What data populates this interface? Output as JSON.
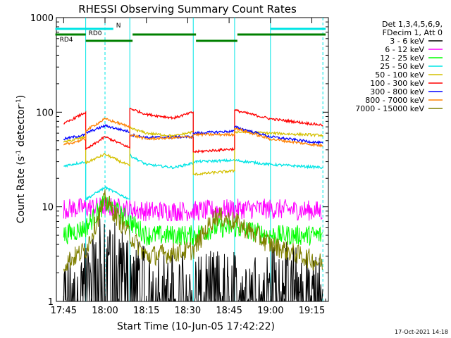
{
  "chart_data": {
    "type": "line",
    "title": "RHESSI Observing Summary Count Rates",
    "xlabel": "Start Time (10-Jun-05 17:42:22)",
    "ylabel": "Count Rate (s⁻¹ detector⁻¹)",
    "ylabel_main": "Count Rate (s",
    "ylabel_sup1": "-1",
    "ylabel_mid": " detector",
    "ylabel_sup2": "-1",
    "ylabel_end": ")",
    "yscale": "log",
    "ylim": [
      1,
      1000
    ],
    "xlim": [
      "17:42:22",
      "19:21:00"
    ],
    "x_ticks": [
      "17:45",
      "18:00",
      "18:15",
      "18:30",
      "18:45",
      "19:00",
      "19:15"
    ],
    "y_ticks": [
      "1",
      "10",
      "100",
      "1000"
    ],
    "footer_date": "17-Oct-2021 14:18",
    "legend_header": [
      "Det 1,3,4,5,6,9,",
      "FDecim 1, Att 0"
    ],
    "legend_position": "right",
    "flags": [
      {
        "label": "N",
        "color": "#00e5e5",
        "segments": [
          [
            "17:42",
            "18:03"
          ],
          [
            "19:00",
            "19:20"
          ]
        ]
      },
      {
        "label": "RD0",
        "color": "#008000",
        "segments": [
          [
            "17:42",
            "17:53"
          ],
          [
            "18:10",
            "18:33"
          ],
          [
            "18:48",
            "19:20"
          ]
        ]
      },
      {
        "label": "RD4",
        "color": "#008000",
        "segments": [
          [
            "17:53",
            "18:10"
          ],
          [
            "18:33",
            "18:48"
          ]
        ]
      }
    ],
    "vlines_solid": [
      "17:53",
      "18:09",
      "18:32",
      "18:47",
      "19:00"
    ],
    "vlines_dashed": [
      "18:00",
      "19:19"
    ],
    "series": [
      {
        "name": "3 - 6 keV",
        "color": "#000000",
        "mode": "spiky",
        "points": [
          [
            "17:45",
            1.2
          ],
          [
            "17:53",
            1.8
          ],
          [
            "18:00",
            3.5
          ],
          [
            "18:09",
            2.0
          ],
          [
            "18:15",
            1.4
          ],
          [
            "18:32",
            1.3
          ],
          [
            "18:47",
            1.3
          ],
          [
            "19:00",
            1.8
          ],
          [
            "19:19",
            1.2
          ]
        ]
      },
      {
        "name": "6 - 12 keV",
        "color": "#ff00ff",
        "mode": "noisy",
        "points": [
          [
            "17:45",
            9.5
          ],
          [
            "18:00",
            10
          ],
          [
            "18:15",
            9
          ],
          [
            "18:32",
            9
          ],
          [
            "18:47",
            9.5
          ],
          [
            "19:00",
            9.5
          ],
          [
            "19:19",
            9
          ]
        ]
      },
      {
        "name": "12 - 25 keV",
        "color": "#00ff00",
        "mode": "noisy",
        "points": [
          [
            "17:45",
            5
          ],
          [
            "17:53",
            6
          ],
          [
            "18:00",
            11
          ],
          [
            "18:09",
            7
          ],
          [
            "18:15",
            5
          ],
          [
            "18:32",
            5
          ],
          [
            "18:40",
            6
          ],
          [
            "18:47",
            6
          ],
          [
            "19:00",
            5
          ],
          [
            "19:19",
            5
          ]
        ]
      },
      {
        "name": "25 - 50 keV",
        "color": "#00e5e5",
        "mode": "smooth",
        "points": [
          [
            "17:45",
            27
          ],
          [
            "17:53",
            30
          ],
          [
            "17:53",
            12
          ],
          [
            "18:00",
            16
          ],
          [
            "18:09",
            12
          ],
          [
            "18:09",
            35
          ],
          [
            "18:15",
            28
          ],
          [
            "18:25",
            26
          ],
          [
            "18:32",
            29
          ],
          [
            "18:32",
            30
          ],
          [
            "18:47",
            31
          ],
          [
            "18:47",
            31
          ],
          [
            "19:00",
            28
          ],
          [
            "19:19",
            26
          ]
        ]
      },
      {
        "name": "50 - 100 keV",
        "color": "#d4c000",
        "mode": "smooth",
        "points": [
          [
            "17:45",
            48
          ],
          [
            "17:53",
            55
          ],
          [
            "17:53",
            29
          ],
          [
            "18:00",
            36
          ],
          [
            "18:09",
            27
          ],
          [
            "18:09",
            68
          ],
          [
            "18:15",
            60
          ],
          [
            "18:25",
            56
          ],
          [
            "18:32",
            62
          ],
          [
            "18:32",
            22
          ],
          [
            "18:47",
            24
          ],
          [
            "18:47",
            62
          ],
          [
            "19:00",
            60
          ],
          [
            "19:19",
            57
          ]
        ]
      },
      {
        "name": "100 - 300 keV",
        "color": "#ff0000",
        "mode": "smooth",
        "points": [
          [
            "17:45",
            75
          ],
          [
            "17:53",
            100
          ],
          [
            "17:53",
            40
          ],
          [
            "18:00",
            55
          ],
          [
            "18:09",
            42
          ],
          [
            "18:09",
            110
          ],
          [
            "18:15",
            95
          ],
          [
            "18:25",
            87
          ],
          [
            "18:32",
            100
          ],
          [
            "18:32",
            38
          ],
          [
            "18:47",
            41
          ],
          [
            "18:47",
            105
          ],
          [
            "19:00",
            85
          ],
          [
            "19:19",
            73
          ]
        ]
      },
      {
        "name": "300 - 800 keV",
        "color": "#0000ff",
        "mode": "smooth",
        "points": [
          [
            "17:45",
            52
          ],
          [
            "17:53",
            58
          ],
          [
            "17:53",
            60
          ],
          [
            "18:00",
            72
          ],
          [
            "18:09",
            62
          ],
          [
            "18:09",
            58
          ],
          [
            "18:15",
            54
          ],
          [
            "18:32",
            55
          ],
          [
            "18:32",
            60
          ],
          [
            "18:47",
            63
          ],
          [
            "18:47",
            70
          ],
          [
            "19:00",
            55
          ],
          [
            "19:19",
            47
          ]
        ]
      },
      {
        "name": "800 - 7000 keV",
        "color": "#ff8000",
        "mode": "smooth",
        "points": [
          [
            "17:45",
            45
          ],
          [
            "17:53",
            52
          ],
          [
            "17:53",
            64
          ],
          [
            "18:00",
            85
          ],
          [
            "18:09",
            70
          ],
          [
            "18:09",
            58
          ],
          [
            "18:15",
            52
          ],
          [
            "18:32",
            55
          ],
          [
            "18:32",
            58
          ],
          [
            "18:47",
            58
          ],
          [
            "18:47",
            68
          ],
          [
            "19:00",
            52
          ],
          [
            "19:19",
            44
          ]
        ]
      },
      {
        "name": "7000 - 15000 keV",
        "color": "#808000",
        "mode": "noisy",
        "points": [
          [
            "17:45",
            2.5
          ],
          [
            "17:53",
            3.5
          ],
          [
            "18:00",
            12
          ],
          [
            "18:09",
            5
          ],
          [
            "18:15",
            3
          ],
          [
            "18:32",
            3.5
          ],
          [
            "18:40",
            8
          ],
          [
            "18:47",
            7
          ],
          [
            "19:00",
            4
          ],
          [
            "19:19",
            2.5
          ]
        ]
      }
    ]
  }
}
